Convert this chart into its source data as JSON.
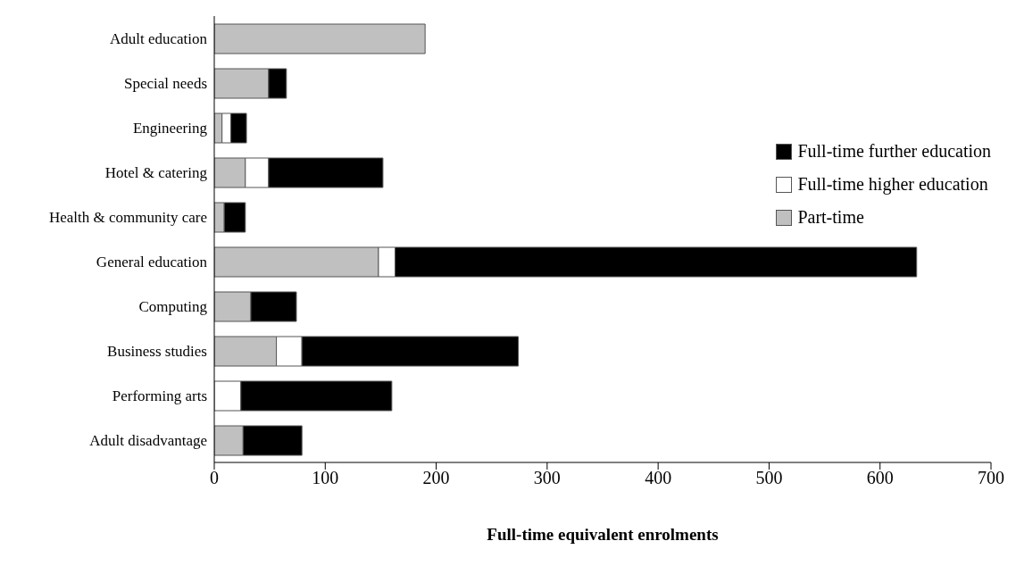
{
  "chart_data": {
    "type": "bar",
    "orientation": "horizontal",
    "stacked": true,
    "xlabel": "Full-time equivalent enrolments",
    "categories": [
      "Adult education",
      "Special needs",
      "Engineering",
      "Hotel & catering",
      "Health & community care",
      "General education",
      "Computing",
      "Business studies",
      "Performing arts",
      "Adult disadvantage"
    ],
    "series": [
      {
        "name": "Part-time",
        "color": "#c0c0c0",
        "values": [
          190,
          49,
          7,
          28,
          9,
          148,
          33,
          56,
          null,
          26
        ]
      },
      {
        "name": "Full-time higher education",
        "color": "#ffffff",
        "values": [
          null,
          null,
          8,
          21,
          null,
          15,
          null,
          23,
          24,
          null
        ]
      },
      {
        "name": "Full-time further education",
        "color": "#000000",
        "values": [
          null,
          16,
          14,
          103,
          19,
          470,
          41,
          195,
          136,
          53
        ]
      }
    ],
    "xlim": [
      0,
      700
    ],
    "xticks": [
      0,
      100,
      200,
      300,
      400,
      500,
      600,
      700
    ],
    "grid": false,
    "legend": "top right"
  }
}
